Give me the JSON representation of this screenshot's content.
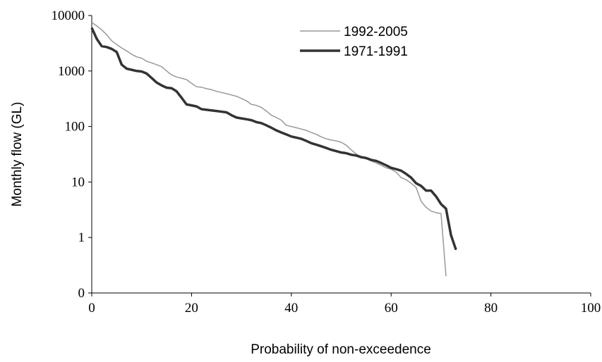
{
  "chart_data": {
    "type": "line",
    "x_label": "Probability of non-exceedence",
    "y_label": "Monthly flow (GL)",
    "log_y": true,
    "xlim": [
      0,
      100
    ],
    "xticks": [
      0,
      20,
      40,
      60,
      80,
      100
    ],
    "ylim": [
      0.1,
      10000
    ],
    "yticks": [
      {
        "value": 0.1,
        "label": "0"
      },
      1,
      10,
      100,
      1000,
      10000
    ],
    "x": [
      0,
      1,
      2,
      3,
      4,
      5,
      6,
      7,
      8,
      9,
      10,
      11,
      12,
      13,
      14,
      15,
      16,
      17,
      18,
      19,
      20,
      21,
      22,
      23,
      24,
      25,
      26,
      27,
      28,
      29,
      30,
      31,
      32,
      33,
      34,
      35,
      36,
      37,
      38,
      39,
      40,
      41,
      42,
      43,
      44,
      45,
      46,
      47,
      48,
      49,
      50,
      51,
      52,
      53,
      54,
      55,
      56,
      57,
      58,
      59,
      60,
      61,
      62,
      63,
      64,
      65,
      66,
      67,
      68,
      69,
      70,
      71,
      72,
      73
    ],
    "series": [
      {
        "name": "1992-2005",
        "color": "#999999",
        "width": 1.5,
        "values": [
          7500,
          6500,
          5500,
          4500,
          3500,
          3000,
          2600,
          2300,
          2000,
          1800,
          1700,
          1500,
          1400,
          1300,
          1200,
          1000,
          850,
          780,
          740,
          700,
          600,
          520,
          510,
          480,
          460,
          430,
          410,
          390,
          370,
          350,
          320,
          290,
          250,
          240,
          220,
          190,
          160,
          145,
          130,
          105,
          100,
          95,
          90,
          85,
          78,
          72,
          65,
          60,
          57,
          55,
          52,
          46,
          38,
          32,
          28,
          26,
          24,
          22,
          20,
          18,
          17,
          15,
          12,
          11,
          9.5,
          8,
          4.5,
          3.5,
          3,
          2.8,
          2.7,
          0.2,
          null,
          null
        ]
      },
      {
        "name": "1971-1991",
        "color": "#333333",
        "width": 3.5,
        "values": [
          6000,
          3800,
          2800,
          2700,
          2500,
          2200,
          1300,
          1100,
          1050,
          1000,
          980,
          900,
          750,
          620,
          550,
          500,
          490,
          430,
          330,
          250,
          240,
          230,
          205,
          200,
          195,
          190,
          185,
          180,
          160,
          145,
          140,
          135,
          130,
          120,
          115,
          105,
          95,
          85,
          78,
          72,
          66,
          63,
          60,
          55,
          50,
          47,
          44,
          41,
          38,
          36,
          34,
          33,
          31,
          30,
          28,
          27,
          25,
          24,
          22,
          20,
          18,
          17,
          16,
          14,
          12,
          9.5,
          8.5,
          7,
          7,
          5.5,
          4,
          3.3,
          1.1,
          0.6
        ]
      }
    ],
    "legend_position": "top"
  }
}
